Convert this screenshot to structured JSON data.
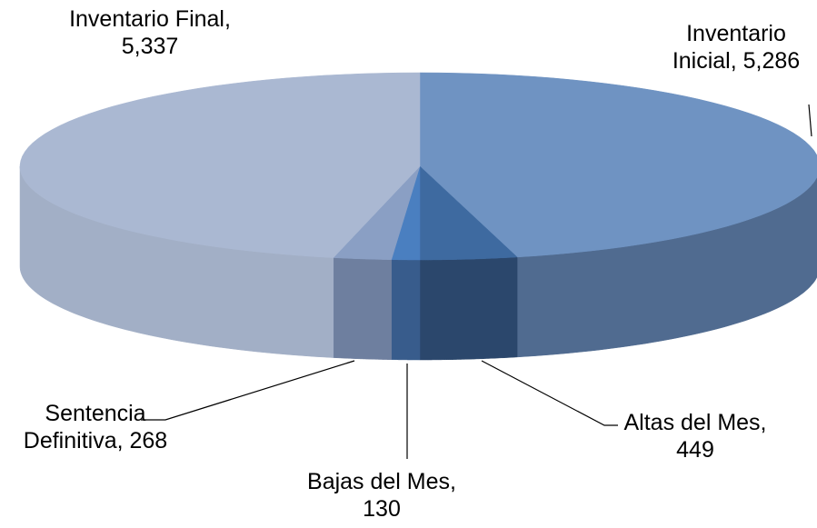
{
  "chart_data": {
    "type": "pie3d",
    "values": [
      5286,
      449,
      130,
      268,
      5337
    ],
    "value_labels": [
      "Inventario Inicial, 5,286",
      "Altas del Mes, 449",
      "Bajas del Mes, 130",
      "Sentencia Definitiva, 268",
      "Inventario Final, 5,337"
    ],
    "colors": [
      "#6f93c2",
      "#3e6aa0",
      "#4a7fc0",
      "#8a9fc4",
      "#aab8d2"
    ],
    "side_colors": [
      "#506b90",
      "#2b476c",
      "#385c8c",
      "#6e7f9f",
      "#a2afc6"
    ]
  }
}
